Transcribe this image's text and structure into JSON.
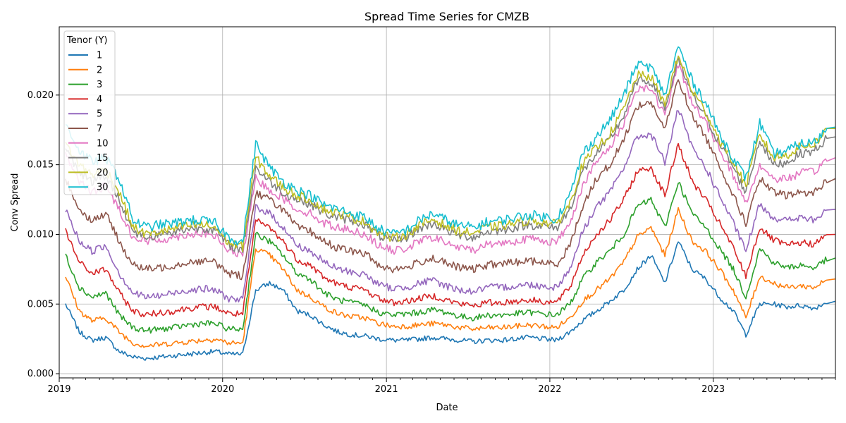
{
  "chart_data": {
    "type": "line",
    "title": "Spread Time Series for CMZB",
    "xlabel": "Date",
    "ylabel": "Conv Spread",
    "xlim": [
      "2019-01-01",
      "2023-10-01"
    ],
    "ylim": [
      -0.0003,
      0.0249
    ],
    "yticks": [
      "0.000",
      "0.005",
      "0.010",
      "0.015",
      "0.020"
    ],
    "xticks": [
      "2019",
      "2020",
      "2021",
      "2022",
      "2023"
    ],
    "grid": true,
    "legend": {
      "title": "Tenor (Y)",
      "placement": "top-left"
    },
    "x": [
      "2019-01",
      "2019-02",
      "2019-03",
      "2019-04",
      "2019-05",
      "2019-06",
      "2019-07",
      "2019-08",
      "2019-09",
      "2019-10",
      "2019-11",
      "2019-12",
      "2020-01",
      "2020-02",
      "2020-03",
      "2020-04",
      "2020-05",
      "2020-06",
      "2020-07",
      "2020-08",
      "2020-09",
      "2020-10",
      "2020-11",
      "2020-12",
      "2021-01",
      "2021-02",
      "2021-03",
      "2021-04",
      "2021-05",
      "2021-06",
      "2021-07",
      "2021-08",
      "2021-09",
      "2021-10",
      "2021-11",
      "2021-12",
      "2022-01",
      "2022-02",
      "2022-03",
      "2022-04",
      "2022-05",
      "2022-06",
      "2022-07",
      "2022-08",
      "2022-09",
      "2022-10",
      "2022-11",
      "2022-12",
      "2023-01",
      "2023-02",
      "2023-03",
      "2023-04",
      "2023-05",
      "2023-06",
      "2023-07",
      "2023-08",
      "2023-09"
    ],
    "series": [
      {
        "name": "1",
        "color": "#1f77b4",
        "values": [
          0.005,
          0.003,
          0.0024,
          0.0026,
          0.0016,
          0.0012,
          0.0011,
          0.0012,
          0.0013,
          0.0014,
          0.0015,
          0.0016,
          0.0014,
          0.0014,
          0.006,
          0.0065,
          0.006,
          0.0045,
          0.0042,
          0.0035,
          0.003,
          0.0028,
          0.0027,
          0.0025,
          0.0024,
          0.0024,
          0.0025,
          0.0026,
          0.0025,
          0.0024,
          0.0023,
          0.0024,
          0.0024,
          0.0025,
          0.0026,
          0.0025,
          0.0024,
          0.003,
          0.0038,
          0.0045,
          0.0052,
          0.006,
          0.0075,
          0.0085,
          0.0065,
          0.0095,
          0.0075,
          0.0068,
          0.0055,
          0.0045,
          0.0028,
          0.005,
          0.005,
          0.0048,
          0.0049,
          0.0047,
          0.0052
        ]
      },
      {
        "name": "2",
        "color": "#ff7f0e",
        "values": [
          0.007,
          0.0045,
          0.0038,
          0.004,
          0.003,
          0.0022,
          0.002,
          0.0021,
          0.0022,
          0.0023,
          0.0024,
          0.0025,
          0.0022,
          0.0022,
          0.009,
          0.0085,
          0.0075,
          0.006,
          0.0055,
          0.0048,
          0.0043,
          0.0041,
          0.004,
          0.0036,
          0.0034,
          0.0034,
          0.0035,
          0.0036,
          0.0035,
          0.0033,
          0.0032,
          0.0033,
          0.0033,
          0.0034,
          0.0035,
          0.0034,
          0.0033,
          0.004,
          0.0052,
          0.006,
          0.0068,
          0.008,
          0.0098,
          0.0105,
          0.0085,
          0.0118,
          0.0095,
          0.0088,
          0.0075,
          0.006,
          0.004,
          0.007,
          0.0065,
          0.0062,
          0.0063,
          0.0062,
          0.0068
        ]
      },
      {
        "name": "3",
        "color": "#2ca02c",
        "values": [
          0.0085,
          0.0062,
          0.0055,
          0.0058,
          0.0042,
          0.0033,
          0.0031,
          0.0032,
          0.0033,
          0.0035,
          0.0036,
          0.0036,
          0.0032,
          0.0032,
          0.01,
          0.0095,
          0.0085,
          0.0072,
          0.0068,
          0.0058,
          0.0053,
          0.0051,
          0.0049,
          0.0044,
          0.0042,
          0.0043,
          0.0044,
          0.0046,
          0.0044,
          0.0041,
          0.004,
          0.0042,
          0.0042,
          0.0043,
          0.0044,
          0.0043,
          0.0042,
          0.005,
          0.0068,
          0.008,
          0.0088,
          0.01,
          0.012,
          0.0125,
          0.0105,
          0.0138,
          0.0115,
          0.0105,
          0.009,
          0.0075,
          0.0055,
          0.009,
          0.008,
          0.0076,
          0.0078,
          0.0076,
          0.0083
        ]
      },
      {
        "name": "4",
        "color": "#d62728",
        "values": [
          0.0102,
          0.008,
          0.0072,
          0.0075,
          0.0058,
          0.0045,
          0.0042,
          0.0044,
          0.0045,
          0.0047,
          0.0048,
          0.0048,
          0.0043,
          0.0043,
          0.011,
          0.0105,
          0.0095,
          0.0082,
          0.0078,
          0.0069,
          0.0064,
          0.0062,
          0.006,
          0.0054,
          0.0051,
          0.0052,
          0.0054,
          0.0056,
          0.0053,
          0.005,
          0.0049,
          0.0051,
          0.0051,
          0.0052,
          0.0053,
          0.0052,
          0.0051,
          0.0062,
          0.0085,
          0.01,
          0.011,
          0.0125,
          0.0145,
          0.0148,
          0.0128,
          0.0165,
          0.0138,
          0.0125,
          0.0108,
          0.009,
          0.007,
          0.0105,
          0.0096,
          0.0092,
          0.0094,
          0.0093,
          0.01
        ]
      },
      {
        "name": "5",
        "color": "#9467bd",
        "values": [
          0.0118,
          0.0095,
          0.0088,
          0.0092,
          0.0072,
          0.0058,
          0.0055,
          0.0056,
          0.0058,
          0.006,
          0.0061,
          0.006,
          0.0054,
          0.0053,
          0.012,
          0.0115,
          0.0105,
          0.0092,
          0.0088,
          0.008,
          0.0075,
          0.0073,
          0.0071,
          0.0064,
          0.0061,
          0.0062,
          0.0065,
          0.0067,
          0.0063,
          0.006,
          0.0059,
          0.0062,
          0.0062,
          0.0063,
          0.0064,
          0.0063,
          0.0062,
          0.0075,
          0.0102,
          0.012,
          0.013,
          0.0148,
          0.017,
          0.0172,
          0.0152,
          0.019,
          0.0162,
          0.0148,
          0.0128,
          0.0108,
          0.0088,
          0.0122,
          0.0112,
          0.011,
          0.0112,
          0.011,
          0.0118
        ]
      },
      {
        "name": "7",
        "color": "#8c564b",
        "values": [
          0.014,
          0.0118,
          0.011,
          0.0115,
          0.0095,
          0.0078,
          0.0075,
          0.0076,
          0.0078,
          0.008,
          0.0081,
          0.008,
          0.0072,
          0.007,
          0.013,
          0.0125,
          0.0118,
          0.0105,
          0.0102,
          0.0095,
          0.009,
          0.0088,
          0.0086,
          0.0078,
          0.0075,
          0.0076,
          0.008,
          0.0083,
          0.0079,
          0.0076,
          0.0075,
          0.0078,
          0.0079,
          0.008,
          0.0081,
          0.008,
          0.0078,
          0.0092,
          0.012,
          0.014,
          0.015,
          0.0168,
          0.0192,
          0.0195,
          0.0175,
          0.0212,
          0.0185,
          0.017,
          0.015,
          0.0128,
          0.0108,
          0.014,
          0.013,
          0.0128,
          0.013,
          0.013,
          0.014
        ]
      },
      {
        "name": "10",
        "color": "#e377c2",
        "values": [
          0.0158,
          0.0138,
          0.013,
          0.0135,
          0.0118,
          0.0098,
          0.0095,
          0.0096,
          0.0098,
          0.01,
          0.0101,
          0.0099,
          0.0088,
          0.0085,
          0.014,
          0.0132,
          0.0126,
          0.0118,
          0.0115,
          0.0108,
          0.0105,
          0.0103,
          0.01,
          0.0092,
          0.0088,
          0.009,
          0.0095,
          0.0098,
          0.0094,
          0.009,
          0.0089,
          0.0093,
          0.0094,
          0.0095,
          0.0097,
          0.0096,
          0.0094,
          0.0108,
          0.0135,
          0.0152,
          0.0162,
          0.018,
          0.0205,
          0.0205,
          0.0185,
          0.0222,
          0.0195,
          0.018,
          0.0162,
          0.0142,
          0.0122,
          0.015,
          0.014,
          0.014,
          0.0144,
          0.0145,
          0.0155
        ]
      },
      {
        "name": "15",
        "color": "#7f7f7f",
        "values": [
          0.0162,
          0.0145,
          0.0138,
          0.0142,
          0.0125,
          0.0102,
          0.0098,
          0.01,
          0.0102,
          0.0104,
          0.0105,
          0.0103,
          0.0092,
          0.0089,
          0.0148,
          0.0138,
          0.013,
          0.0125,
          0.0122,
          0.0115,
          0.0112,
          0.011,
          0.0107,
          0.0099,
          0.0095,
          0.0098,
          0.0104,
          0.0108,
          0.0103,
          0.0099,
          0.0098,
          0.0102,
          0.0103,
          0.0105,
          0.0107,
          0.0106,
          0.0104,
          0.0118,
          0.0145,
          0.0158,
          0.0168,
          0.0185,
          0.021,
          0.021,
          0.019,
          0.0225,
          0.02,
          0.0185,
          0.0165,
          0.0148,
          0.013,
          0.0168,
          0.015,
          0.0152,
          0.0158,
          0.016,
          0.017
        ]
      },
      {
        "name": "20",
        "color": "#bcbd22",
        "values": [
          0.0165,
          0.015,
          0.0143,
          0.0147,
          0.013,
          0.0105,
          0.01,
          0.0102,
          0.0104,
          0.0106,
          0.0107,
          0.0105,
          0.0094,
          0.0091,
          0.0155,
          0.0142,
          0.0134,
          0.0128,
          0.0125,
          0.0118,
          0.0115,
          0.0112,
          0.0109,
          0.0101,
          0.0097,
          0.01,
          0.0106,
          0.0111,
          0.0106,
          0.0102,
          0.0101,
          0.0105,
          0.0106,
          0.0108,
          0.011,
          0.0109,
          0.0107,
          0.0122,
          0.015,
          0.0162,
          0.0172,
          0.019,
          0.0214,
          0.0213,
          0.0193,
          0.0228,
          0.0203,
          0.0188,
          0.0168,
          0.0152,
          0.0135,
          0.0172,
          0.0155,
          0.0157,
          0.0163,
          0.0165,
          0.0176
        ]
      },
      {
        "name": "30",
        "color": "#17becf",
        "values": [
          0.018,
          0.016,
          0.0152,
          0.0155,
          0.014,
          0.011,
          0.0105,
          0.0107,
          0.0108,
          0.011,
          0.011,
          0.0108,
          0.0098,
          0.0094,
          0.0165,
          0.0148,
          0.0138,
          0.0132,
          0.0128,
          0.0121,
          0.0118,
          0.0115,
          0.0112,
          0.0104,
          0.01,
          0.0103,
          0.011,
          0.0115,
          0.011,
          0.0106,
          0.0105,
          0.0109,
          0.011,
          0.0112,
          0.0114,
          0.0113,
          0.0111,
          0.0128,
          0.0158,
          0.017,
          0.0182,
          0.02,
          0.0222,
          0.022,
          0.02,
          0.0235,
          0.021,
          0.0195,
          0.0172,
          0.0155,
          0.014,
          0.018,
          0.0158,
          0.016,
          0.0165,
          0.0166,
          0.0177
        ]
      }
    ]
  }
}
